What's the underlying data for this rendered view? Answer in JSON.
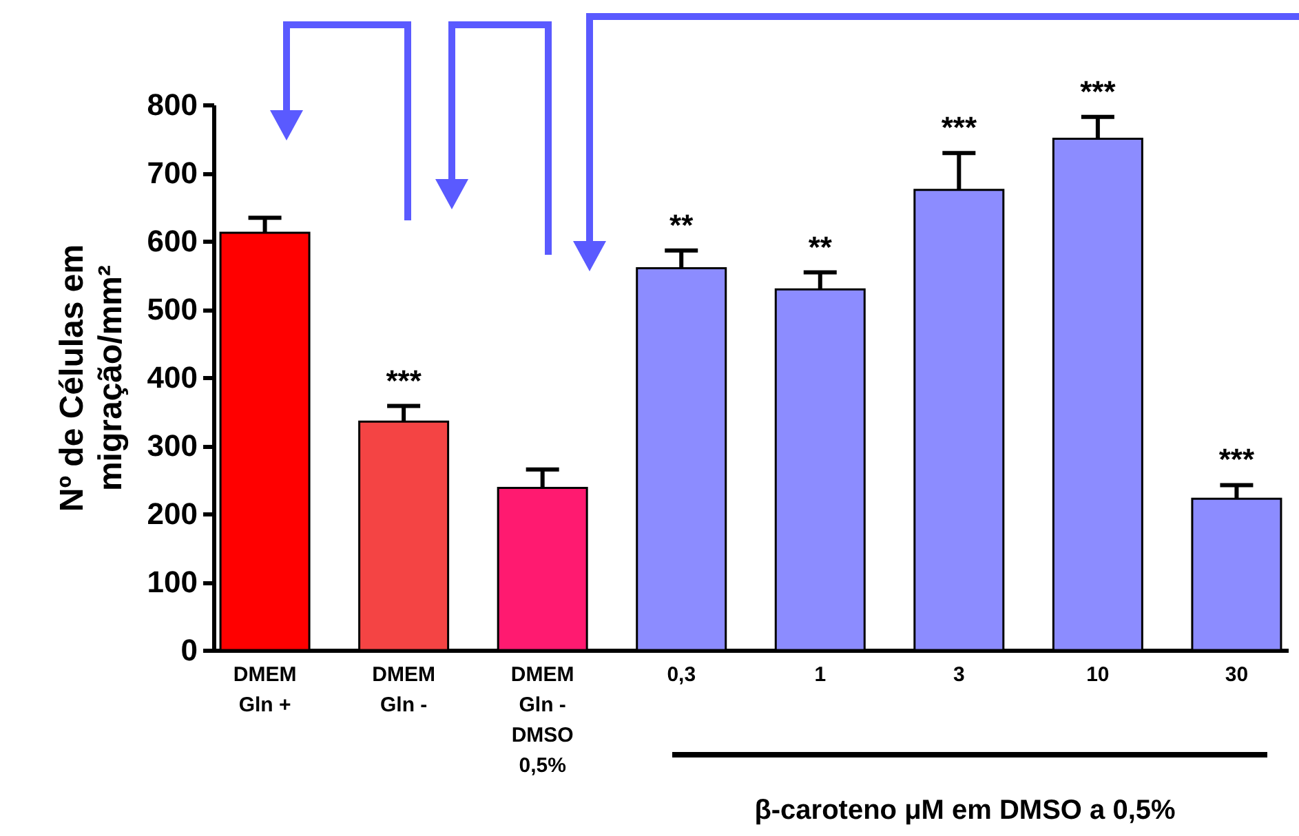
{
  "chart_data": {
    "type": "bar",
    "ylabel": "Nº de Células em\nmigração/mm²",
    "xlabel": "β-caroteno μM em DMSO a 0,5%",
    "categories": [
      "DMEM\nGln +",
      "DMEM\nGln -",
      "DMEM\nGln -\nDMSO\n0,5%",
      "0,3",
      "1",
      "3",
      "10",
      "30"
    ],
    "values": [
      612,
      335,
      238,
      560,
      529,
      675,
      750,
      222
    ],
    "colors": [
      "#ff0000",
      "#f44444",
      "#ff1a70",
      "#8c8cff",
      "#8c8cff",
      "#8c8cff",
      "#8c8cff",
      "#8c8cff"
    ],
    "errors": [
      [
        612,
        634
      ],
      [
        335,
        358
      ],
      [
        238,
        265
      ],
      [
        560,
        586
      ],
      [
        529,
        554
      ],
      [
        675,
        729
      ],
      [
        750,
        782
      ],
      [
        222,
        242
      ]
    ],
    "ylim": [
      0,
      800
    ],
    "yticks": [
      0,
      100,
      200,
      300,
      400,
      500,
      600,
      700,
      800
    ],
    "grid": false,
    "annotations": [
      {
        "text": "***",
        "x": "DMEM\nGln -",
        "y": 358
      },
      {
        "text": "**",
        "x": "0,3",
        "y": 586
      },
      {
        "text": "**",
        "x": "1",
        "y": 554
      },
      {
        "text": "***",
        "x": "3",
        "y": 729
      },
      {
        "text": "***",
        "x": "10",
        "y": 782
      },
      {
        "text": "***",
        "x": "30",
        "y": 242
      }
    ]
  }
}
